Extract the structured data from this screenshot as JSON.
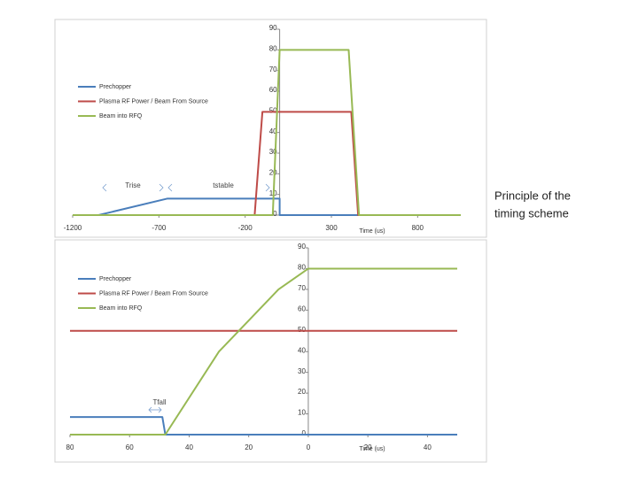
{
  "chart_data": [
    {
      "type": "line",
      "x_label": "Time (us)",
      "annotations": [
        "Trise",
        "tstable"
      ],
      "xlim": [
        -1200,
        1050
      ],
      "xticks": [
        -1200,
        -700,
        -200,
        300,
        800
      ],
      "ylim": [
        0,
        90
      ],
      "yticks": [
        0,
        10,
        20,
        30,
        40,
        50,
        60,
        70,
        80,
        90
      ],
      "grid": false,
      "legend": "upper left",
      "series": [
        {
          "name": "Prechopper",
          "color": "#4a7ebb",
          "x": [
            -1200,
            -1050,
            -650,
            0,
            0,
            1050
          ],
          "values": [
            0,
            0,
            8,
            8,
            0,
            0
          ]
        },
        {
          "name": "Plasma RF Power / Beam From Source",
          "color": "#be4b48",
          "x": [
            -1200,
            -145,
            -100,
            415,
            455,
            1050
          ],
          "values": [
            0,
            0,
            50,
            50,
            0,
            0
          ]
        },
        {
          "name": "Beam into RFQ",
          "color": "#98b954",
          "x": [
            -1200,
            -40,
            0,
            400,
            460,
            1050
          ],
          "values": [
            0,
            0,
            80,
            80,
            0,
            0
          ]
        }
      ]
    },
    {
      "type": "line",
      "x_label": "Time (us)",
      "annotations": [
        "Tfall"
      ],
      "xlim": [
        -80,
        50
      ],
      "xticks": [
        {
          "value": -80,
          "label": "80"
        },
        {
          "value": -60,
          "label": "60"
        },
        {
          "value": -40,
          "label": "40"
        },
        {
          "value": -20,
          "label": "20"
        },
        0,
        20,
        40
      ],
      "ylim": [
        0,
        90
      ],
      "yticks": [
        0,
        10,
        20,
        30,
        40,
        50,
        60,
        70,
        80,
        90
      ],
      "grid": false,
      "legend": "upper left",
      "series": [
        {
          "name": "Prechopper",
          "color": "#4a7ebb",
          "x": [
            -80,
            -49,
            -48,
            50
          ],
          "values": [
            8.5,
            8.5,
            0,
            0
          ]
        },
        {
          "name": "Plasma RF Power / Beam From Source",
          "color": "#be4b48",
          "x": [
            -80,
            50
          ],
          "values": [
            50,
            50
          ]
        },
        {
          "name": "Beam into RFQ",
          "color": "#98b954",
          "x": [
            -80,
            -48,
            -30,
            -10,
            0,
            50
          ],
          "values": [
            0,
            0,
            40,
            70,
            80,
            80
          ]
        }
      ]
    }
  ],
  "side_text": [
    "Principle of the",
    "timing scheme"
  ]
}
